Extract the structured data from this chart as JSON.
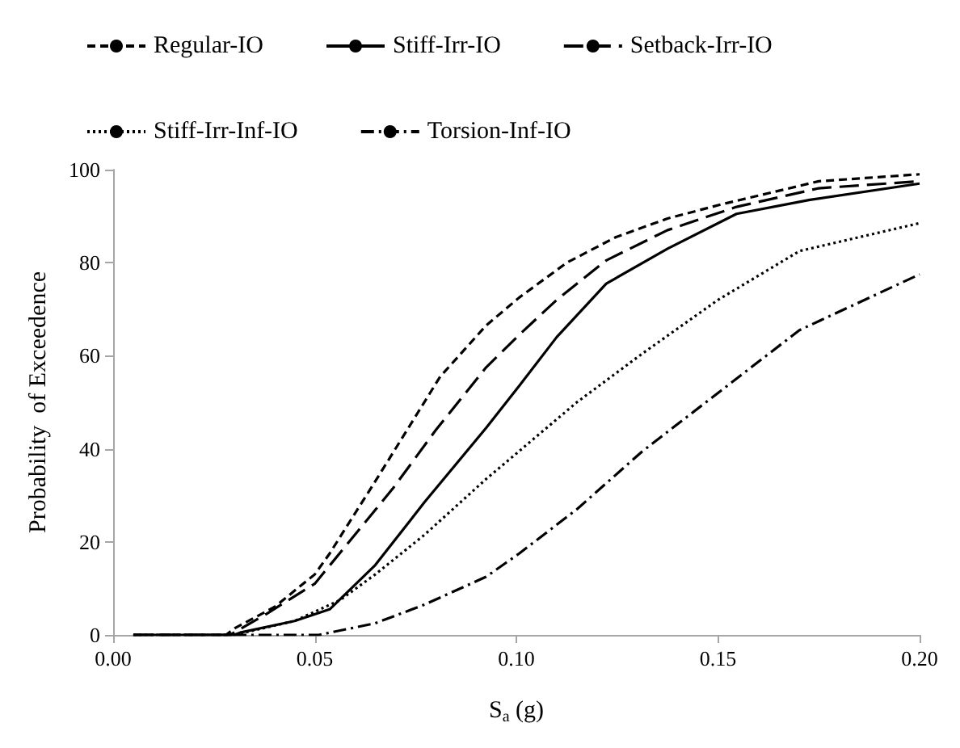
{
  "chart_data": {
    "type": "line",
    "xlabel": "S$_{a}$ (g)",
    "ylabel": "Probability  of Exceedence",
    "xlim": [
      0,
      0.2
    ],
    "ylim": [
      0,
      100
    ],
    "xticks": [
      {
        "value": 0,
        "label": "0.00"
      },
      {
        "value": 0.05,
        "label": "0.05"
      },
      {
        "value": 0.1,
        "label": "0.10"
      },
      {
        "value": 0.15,
        "label": "0.15"
      },
      {
        "value": 0.2,
        "label": "0.20"
      }
    ],
    "yticks": [
      0,
      20,
      40,
      60,
      80,
      100
    ],
    "grid": false,
    "legend": "top",
    "marker": "none",
    "series": [
      {
        "name": "Regular-IO",
        "color": "#000000",
        "line_style": "dashed",
        "x": [
          0.005,
          0.028,
          0.0303,
          0.04,
          0.05,
          0.0537,
          0.065,
          0.0811,
          0.0925,
          0.1007,
          0.1125,
          0.1247,
          0.1375,
          0.1507,
          0.175,
          0.2
        ],
        "values": [
          0,
          0,
          1.5,
          6,
          13,
          17.5,
          33,
          55.5,
          66.5,
          72.5,
          80,
          85.5,
          89.5,
          92.5,
          97.5,
          99
        ]
      },
      {
        "name": "Stiff-Irr-IO",
        "color": "#000000",
        "line_style": "solid",
        "x": [
          0.005,
          0.03,
          0.0315,
          0.045,
          0.0537,
          0.065,
          0.0772,
          0.0925,
          0.1007,
          0.11,
          0.1223,
          0.1375,
          0.1546,
          0.1728,
          0.2
        ],
        "values": [
          0,
          0,
          0.5,
          3,
          5.5,
          15,
          28.5,
          44.5,
          53.5,
          64,
          75.5,
          83,
          90.5,
          93.5,
          97
        ]
      },
      {
        "name": "Setback-Irr-IO",
        "color": "#000000",
        "line_style": "longdash",
        "x": [
          0.005,
          0.029,
          0.038,
          0.05,
          0.0694,
          0.08,
          0.0925,
          0.1007,
          0.11,
          0.1223,
          0.1375,
          0.1546,
          0.175,
          0.2
        ],
        "values": [
          0,
          0,
          4.5,
          11,
          31.5,
          44,
          57.5,
          64.5,
          72,
          80.5,
          87,
          92,
          96,
          97.5
        ]
      },
      {
        "name": "Stiff-Irr-Inf-IO",
        "color": "#000000",
        "line_style": "dotted",
        "x": [
          0.005,
          0.03,
          0.045,
          0.0563,
          0.065,
          0.0772,
          0.0925,
          0.1007,
          0.115,
          0.1313,
          0.15,
          0.1702,
          0.2
        ],
        "values": [
          0,
          0,
          3,
          7.5,
          13,
          21.5,
          33.5,
          39.5,
          50,
          60.5,
          72,
          82.5,
          88.5
        ]
      },
      {
        "name": "Torsion-Inf-IO",
        "color": "#000000",
        "line_style": "dashdot",
        "x": [
          0.005,
          0.045,
          0.051,
          0.065,
          0.0772,
          0.0925,
          0.1007,
          0.115,
          0.1313,
          0.15,
          0.1702,
          0.2
        ],
        "values": [
          0,
          0,
          0,
          2.5,
          6.5,
          12.5,
          17.5,
          27,
          39.5,
          52,
          65.5,
          77.5
        ]
      }
    ]
  }
}
